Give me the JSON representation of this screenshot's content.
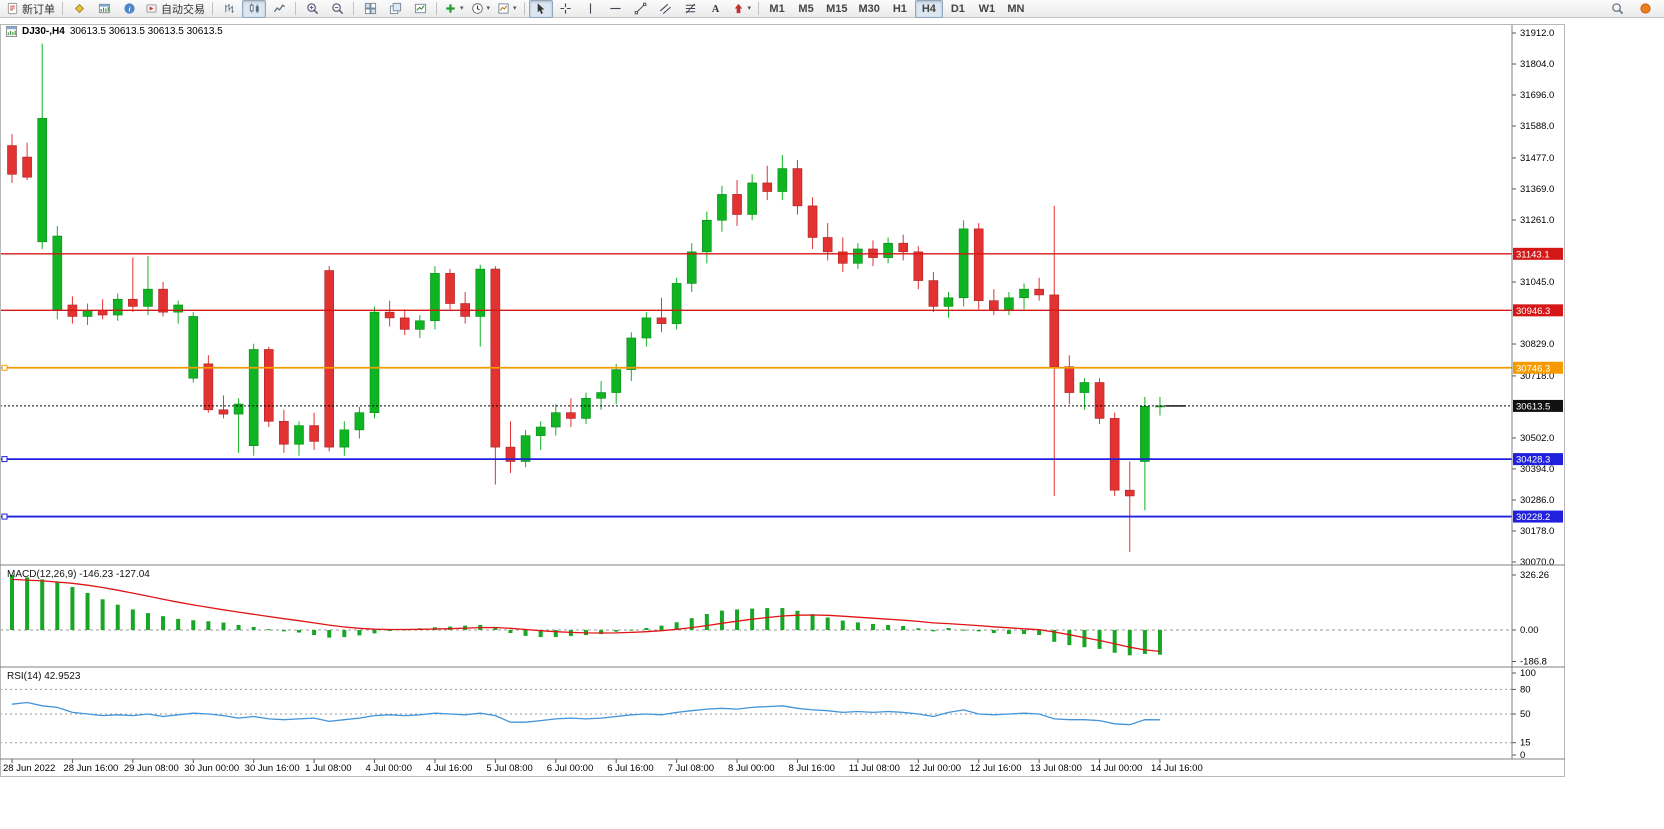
{
  "toolbar": {
    "groups": [
      {
        "items": [
          {
            "name": "new-order",
            "icon": "new-order",
            "label": "新订单"
          }
        ]
      },
      {
        "items": [
          {
            "name": "metaeditor",
            "icon": "yellow-diamond"
          },
          {
            "name": "charts-window",
            "icon": "chart-window"
          },
          {
            "name": "data-window",
            "icon": "info"
          },
          {
            "name": "autotrading",
            "icon": "autotrading",
            "label": "自动交易"
          }
        ]
      },
      {
        "items": [
          {
            "name": "bar-chart-mode",
            "icon": "bar-chart"
          },
          {
            "name": "candle-chart-mode",
            "icon": "candle-chart",
            "active": true
          },
          {
            "name": "line-chart-mode",
            "icon": "line-chart"
          }
        ]
      },
      {
        "items": [
          {
            "name": "zoom-in",
            "icon": "zoom-in"
          },
          {
            "name": "zoom-out",
            "icon": "zoom-out"
          }
        ]
      },
      {
        "items": [
          {
            "name": "tile-windows",
            "icon": "tile"
          },
          {
            "name": "cascade-windows",
            "icon": "arrange"
          },
          {
            "name": "auto-scroll",
            "icon": "track"
          }
        ]
      },
      {
        "items": [
          {
            "name": "indicators",
            "icon": "indicators",
            "dropdown": true
          },
          {
            "name": "periods",
            "icon": "clock",
            "dropdown": true
          },
          {
            "name": "templates",
            "icon": "template",
            "dropdown": true
          }
        ]
      },
      {
        "items": [
          {
            "name": "cursor",
            "icon": "cursor",
            "active": true
          },
          {
            "name": "crosshair",
            "icon": "crosshair"
          },
          {
            "name": "vertical-line",
            "icon": "vline"
          },
          {
            "name": "horizontal-line",
            "icon": "hline"
          },
          {
            "name": "trendline",
            "icon": "trendline"
          },
          {
            "name": "equidistant-channel",
            "icon": "channel"
          },
          {
            "name": "fibonacci",
            "icon": "fibonacci"
          },
          {
            "name": "text-tool",
            "icon": "text"
          },
          {
            "name": "arrows-tool",
            "icon": "arrow",
            "dropdown": true
          }
        ]
      },
      {
        "items": [
          {
            "name": "tf-m1",
            "label": "M1"
          },
          {
            "name": "tf-m5",
            "label": "M5"
          },
          {
            "name": "tf-m15",
            "label": "M15"
          },
          {
            "name": "tf-m30",
            "label": "M30"
          },
          {
            "name": "tf-h1",
            "label": "H1"
          },
          {
            "name": "tf-h4",
            "label": "H4",
            "active": true
          },
          {
            "name": "tf-d1",
            "label": "D1"
          },
          {
            "name": "tf-w1",
            "label": "W1"
          },
          {
            "name": "tf-mn",
            "label": "MN"
          }
        ]
      }
    ],
    "right": [
      {
        "name": "search",
        "icon": "search"
      },
      {
        "name": "connection-status",
        "icon": "status-dot"
      }
    ]
  },
  "chart": {
    "title_symbol": "DJ30-,H4",
    "title_quote": "30613.5 30613.5 30613.5 30613.5"
  },
  "indicators": {
    "macd_label": "MACD(12,26,9)",
    "macd_values": "-146.23 -127.04",
    "rsi_label": "RSI(14)",
    "rsi_value": "42.9523"
  },
  "chart_data": {
    "type": "candlestick",
    "symbol": "DJ30-",
    "timeframe": "H4",
    "ylim": [
      30070,
      31912
    ],
    "colors": {
      "up": "#0fb422",
      "up_stroke": "#0a8a18",
      "down": "#e23232",
      "down_stroke": "#a82424",
      "macd_bar": "#18a626",
      "macd_signal": "#e01414",
      "rsi_line": "#4394d8",
      "level_dash": "#9a9a9a",
      "current_price": "#000000"
    },
    "y_axis_ticks": [
      "31912.0",
      "31804.0",
      "31696.0",
      "31588.0",
      "31477.0",
      "31369.0",
      "31261.0",
      "31045.0",
      "30829.0",
      "30718.0",
      "30502.0",
      "30394.0",
      "30286.0",
      "30178.0",
      "30070.0"
    ],
    "hlines": [
      {
        "value": 31143.1,
        "label": "31143.1",
        "color": "#d41717",
        "width": 1.3,
        "handle": false
      },
      {
        "value": 30946.3,
        "label": "30946.3",
        "color": "#d41717",
        "width": 1.3,
        "handle": false
      },
      {
        "value": 30746.3,
        "label": "30746.3",
        "color": "#f59b00",
        "width": 1.8,
        "handle": true
      },
      {
        "value": 30428.3,
        "label": "30428.3",
        "color": "#2121dd",
        "width": 1.8,
        "handle": true
      },
      {
        "value": 30228.2,
        "label": "30228.2",
        "color": "#2121dd",
        "width": 1.8,
        "handle": true
      }
    ],
    "current_price": {
      "value": 30613.5,
      "label": "30613.5",
      "color": "#111111"
    },
    "time_labels": [
      [
        0,
        "28 Jun 2022"
      ],
      [
        4,
        "28 Jun 16:00"
      ],
      [
        8,
        "29 Jun 08:00"
      ],
      [
        12,
        "30 Jun 00:00"
      ],
      [
        16,
        "30 Jun 16:00"
      ],
      [
        20,
        "1 Jul 08:00"
      ],
      [
        24,
        "4 Jul 00:00"
      ],
      [
        28,
        "4 Jul 16:00"
      ],
      [
        32,
        "5 Jul 08:00"
      ],
      [
        36,
        "6 Jul 00:00"
      ],
      [
        40,
        "6 Jul 16:00"
      ],
      [
        44,
        "7 Jul 08:00"
      ],
      [
        48,
        "8 Jul 00:00"
      ],
      [
        52,
        "8 Jul 16:00"
      ],
      [
        56,
        "11 Jul 08:00"
      ],
      [
        60,
        "12 Jul 00:00"
      ],
      [
        64,
        "12 Jul 16:00"
      ],
      [
        68,
        "13 Jul 08:00"
      ],
      [
        72,
        "14 Jul 00:00"
      ],
      [
        76,
        "14 Jul 16:00"
      ]
    ],
    "ohlc": [
      [
        31520,
        31560,
        31390,
        31420
      ],
      [
        31480,
        31530,
        31400,
        31410
      ],
      [
        31185,
        31875,
        31160,
        31615
      ],
      [
        30950,
        31240,
        30915,
        31205
      ],
      [
        30965,
        30995,
        30900,
        30925
      ],
      [
        30925,
        30970,
        30895,
        30945
      ],
      [
        30945,
        30985,
        30915,
        30930
      ],
      [
        30930,
        31005,
        30910,
        30985
      ],
      [
        30985,
        31130,
        30940,
        30960
      ],
      [
        30960,
        31135,
        30930,
        31020
      ],
      [
        31020,
        31045,
        30925,
        30940
      ],
      [
        30940,
        30980,
        30900,
        30965
      ],
      [
        30710,
        30940,
        30695,
        30925
      ],
      [
        30760,
        30790,
        30590,
        30600
      ],
      [
        30600,
        30650,
        30570,
        30585
      ],
      [
        30585,
        30640,
        30450,
        30620
      ],
      [
        30475,
        30830,
        30440,
        30810
      ],
      [
        30810,
        30820,
        30540,
        30560
      ],
      [
        30560,
        30600,
        30450,
        30480
      ],
      [
        30480,
        30560,
        30440,
        30545
      ],
      [
        30545,
        30590,
        30460,
        30490
      ],
      [
        31085,
        31100,
        30455,
        30470
      ],
      [
        30470,
        30560,
        30440,
        30530
      ],
      [
        30530,
        30610,
        30500,
        30590
      ],
      [
        30590,
        30960,
        30570,
        30940
      ],
      [
        30940,
        30980,
        30890,
        30920
      ],
      [
        30920,
        30950,
        30860,
        30880
      ],
      [
        30880,
        30930,
        30850,
        30910
      ],
      [
        30910,
        31100,
        30880,
        31075
      ],
      [
        31075,
        31090,
        30950,
        30970
      ],
      [
        30970,
        31010,
        30900,
        30925
      ],
      [
        30925,
        31105,
        30820,
        31090
      ],
      [
        31090,
        31100,
        30340,
        30470
      ],
      [
        30470,
        30560,
        30380,
        30420
      ],
      [
        30420,
        30530,
        30400,
        30510
      ],
      [
        30510,
        30560,
        30460,
        30540
      ],
      [
        30540,
        30620,
        30510,
        30590
      ],
      [
        30590,
        30640,
        30540,
        30570
      ],
      [
        30570,
        30660,
        30550,
        30640
      ],
      [
        30640,
        30700,
        30600,
        30660
      ],
      [
        30660,
        30760,
        30620,
        30740
      ],
      [
        30740,
        30870,
        30700,
        30850
      ],
      [
        30850,
        30940,
        30820,
        30920
      ],
      [
        30920,
        30990,
        30870,
        30900
      ],
      [
        30900,
        31060,
        30880,
        31040
      ],
      [
        31040,
        31180,
        31010,
        31150
      ],
      [
        31150,
        31290,
        31110,
        31260
      ],
      [
        31260,
        31380,
        31220,
        31350
      ],
      [
        31350,
        31400,
        31240,
        31280
      ],
      [
        31280,
        31420,
        31260,
        31390
      ],
      [
        31390,
        31450,
        31330,
        31360
      ],
      [
        31360,
        31487,
        31330,
        31440
      ],
      [
        31440,
        31470,
        31280,
        31310
      ],
      [
        31310,
        31340,
        31160,
        31200
      ],
      [
        31200,
        31250,
        31120,
        31150
      ],
      [
        31150,
        31200,
        31080,
        31110
      ],
      [
        31110,
        31180,
        31090,
        31160
      ],
      [
        31160,
        31190,
        31100,
        31130
      ],
      [
        31130,
        31200,
        31110,
        31180
      ],
      [
        31180,
        31210,
        31120,
        31150
      ],
      [
        31150,
        31170,
        31020,
        31050
      ],
      [
        31050,
        31080,
        30940,
        30960
      ],
      [
        30960,
        31010,
        30920,
        30990
      ],
      [
        30990,
        31260,
        30960,
        31230
      ],
      [
        31230,
        31250,
        30950,
        30980
      ],
      [
        30980,
        31020,
        30930,
        30950
      ],
      [
        30950,
        31010,
        30930,
        30990
      ],
      [
        30990,
        31040,
        30950,
        31020
      ],
      [
        31020,
        31060,
        30980,
        31000
      ],
      [
        31000,
        31310,
        30300,
        30750
      ],
      [
        30750,
        30790,
        30620,
        30660
      ],
      [
        30660,
        30710,
        30600,
        30695
      ],
      [
        30695,
        30710,
        30550,
        30570
      ],
      [
        30570,
        30590,
        30300,
        30320
      ],
      [
        30320,
        30420,
        30105,
        30300
      ],
      [
        30420,
        30645,
        30250,
        30612
      ],
      [
        30612,
        30645,
        30580,
        30613.5
      ]
    ],
    "macd": {
      "name": "MACD(12,26,9)",
      "current": "-146.23 -127.04",
      "axis": [
        "326.26",
        "0.00",
        "-186.8"
      ],
      "axis_max": 326.26,
      "histogram": [
        326,
        312,
        300,
        285,
        255,
        220,
        182,
        150,
        122,
        100,
        82,
        66,
        58,
        52,
        44,
        30,
        18,
        5,
        -8,
        -15,
        -30,
        -45,
        -42,
        -32,
        -20,
        -6,
        4,
        10,
        16,
        20,
        26,
        30,
        18,
        -18,
        -35,
        -42,
        -42,
        -36,
        -30,
        -24,
        -10,
        2,
        12,
        26,
        46,
        70,
        95,
        115,
        122,
        127,
        130,
        130,
        114,
        94,
        74,
        56,
        45,
        36,
        30,
        24,
        10,
        -8,
        12,
        2,
        -8,
        -18,
        -24,
        -24,
        -30,
        -70,
        -90,
        -102,
        -112,
        -135,
        -150,
        -142,
        -146.23
      ],
      "signal": [
        300,
        296,
        291,
        285,
        277,
        266,
        252,
        236,
        219,
        201,
        183,
        165,
        149,
        134,
        120,
        106,
        93,
        80,
        67,
        55,
        42,
        29,
        18,
        10,
        5,
        3,
        3,
        4,
        6,
        8,
        11,
        14,
        15,
        10,
        3,
        -4,
        -10,
        -14,
        -17,
        -18,
        -17,
        -14,
        -10,
        -4,
        4,
        14,
        26,
        40,
        52,
        64,
        74,
        83,
        88,
        89,
        87,
        82,
        76,
        70,
        64,
        58,
        51,
        42,
        38,
        32,
        26,
        19,
        13,
        7,
        2,
        -12,
        -28,
        -45,
        -62,
        -82,
        -102,
        -118,
        -127.04
      ]
    },
    "rsi": {
      "name": "RSI(14)",
      "current": "42.9523",
      "axis": [
        "100",
        "80",
        "50",
        "15",
        "0"
      ],
      "levels": [
        80,
        50,
        15
      ],
      "values": [
        62,
        64,
        60,
        58,
        52,
        50,
        48,
        49,
        48,
        50,
        47,
        49,
        51,
        50,
        48,
        45,
        47,
        44,
        43,
        44,
        45,
        41,
        43,
        45,
        48,
        49,
        48,
        49,
        51,
        50,
        49,
        51,
        48,
        40,
        40,
        42,
        44,
        45,
        44,
        45,
        47,
        49,
        50,
        49,
        52,
        54,
        56,
        57,
        56,
        58,
        59,
        60,
        57,
        55,
        54,
        52,
        53,
        52,
        53,
        52,
        50,
        47,
        52,
        55,
        50,
        49,
        50,
        51,
        50,
        44,
        43,
        43,
        42,
        38,
        37,
        43,
        42.95
      ]
    }
  }
}
